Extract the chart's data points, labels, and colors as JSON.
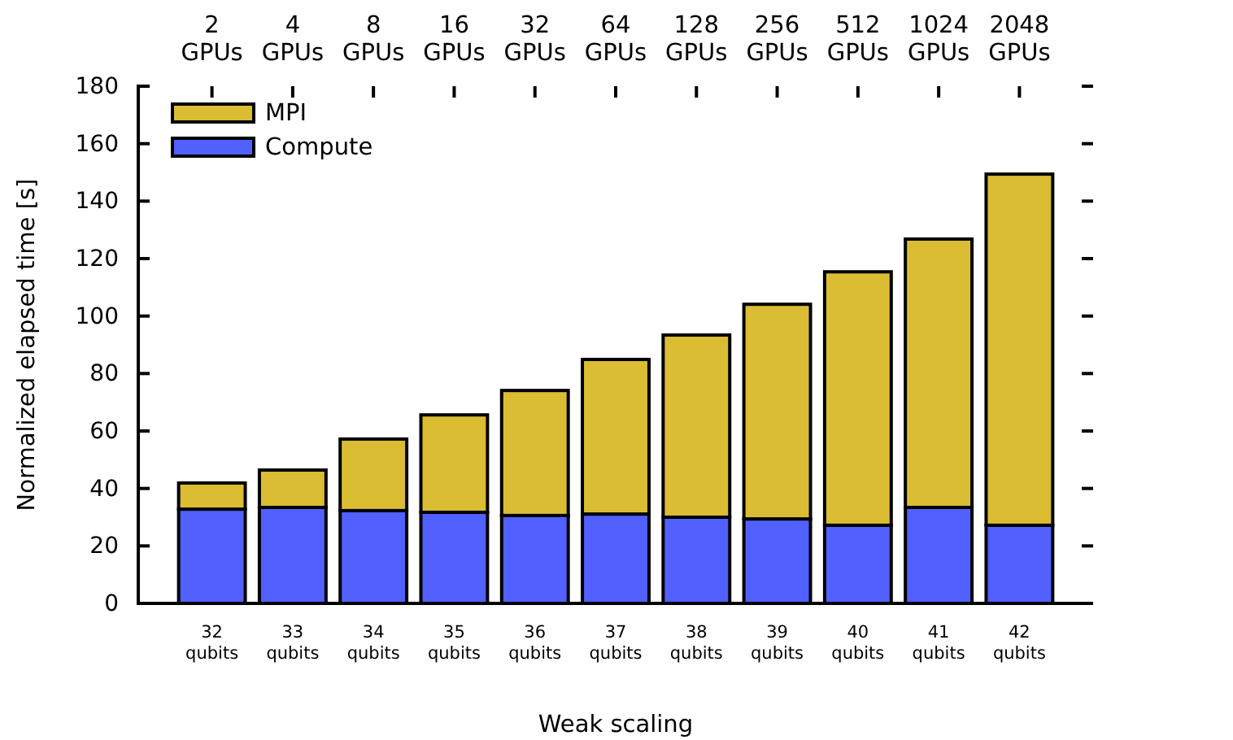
{
  "chart_data": {
    "type": "bar",
    "stacked": true,
    "xlabel": "Weak scaling",
    "ylabel": "Normalized elapsed time [s]",
    "categories": [
      "32 qubits",
      "33 qubits",
      "34 qubits",
      "35 qubits",
      "36 qubits",
      "37 qubits",
      "38 qubits",
      "39 qubits",
      "40 qubits",
      "41 qubits",
      "42 qubits"
    ],
    "series": [
      {
        "name": "Compute",
        "color": "#5260fe",
        "values": [
          32.8,
          33.4,
          32.3,
          31.7,
          30.6,
          31.1,
          30.0,
          29.4,
          27.2,
          33.4,
          27.2
        ]
      },
      {
        "name": "MPI",
        "color": "#dbbd34",
        "values": [
          9.1,
          13.0,
          24.9,
          33.9,
          43.5,
          53.8,
          63.4,
          74.7,
          88.2,
          93.4,
          122.2
        ]
      }
    ],
    "ylim": [
      0,
      180
    ],
    "yticks": [
      0,
      20,
      40,
      60,
      80,
      100,
      120,
      140,
      160,
      180
    ],
    "legend": "top left",
    "annotations": [
      {
        "text": "2 GPUs",
        "x": "32 qubits"
      },
      {
        "text": "4 GPUs",
        "x": "33 qubits"
      },
      {
        "text": "8 GPUs",
        "x": "34 qubits"
      },
      {
        "text": "16 GPUs",
        "x": "35 qubits"
      },
      {
        "text": "32 GPUs",
        "x": "36 qubits"
      },
      {
        "text": "64 GPUs",
        "x": "37 qubits"
      },
      {
        "text": "128 GPUs",
        "x": "38 qubits"
      },
      {
        "text": "256 GPUs",
        "x": "39 qubits"
      },
      {
        "text": "512 GPUs",
        "x": "40 qubits"
      },
      {
        "text": "1024 GPUs",
        "x": "41 qubits"
      },
      {
        "text": "2048 GPUs",
        "x": "42 qubits"
      }
    ]
  }
}
